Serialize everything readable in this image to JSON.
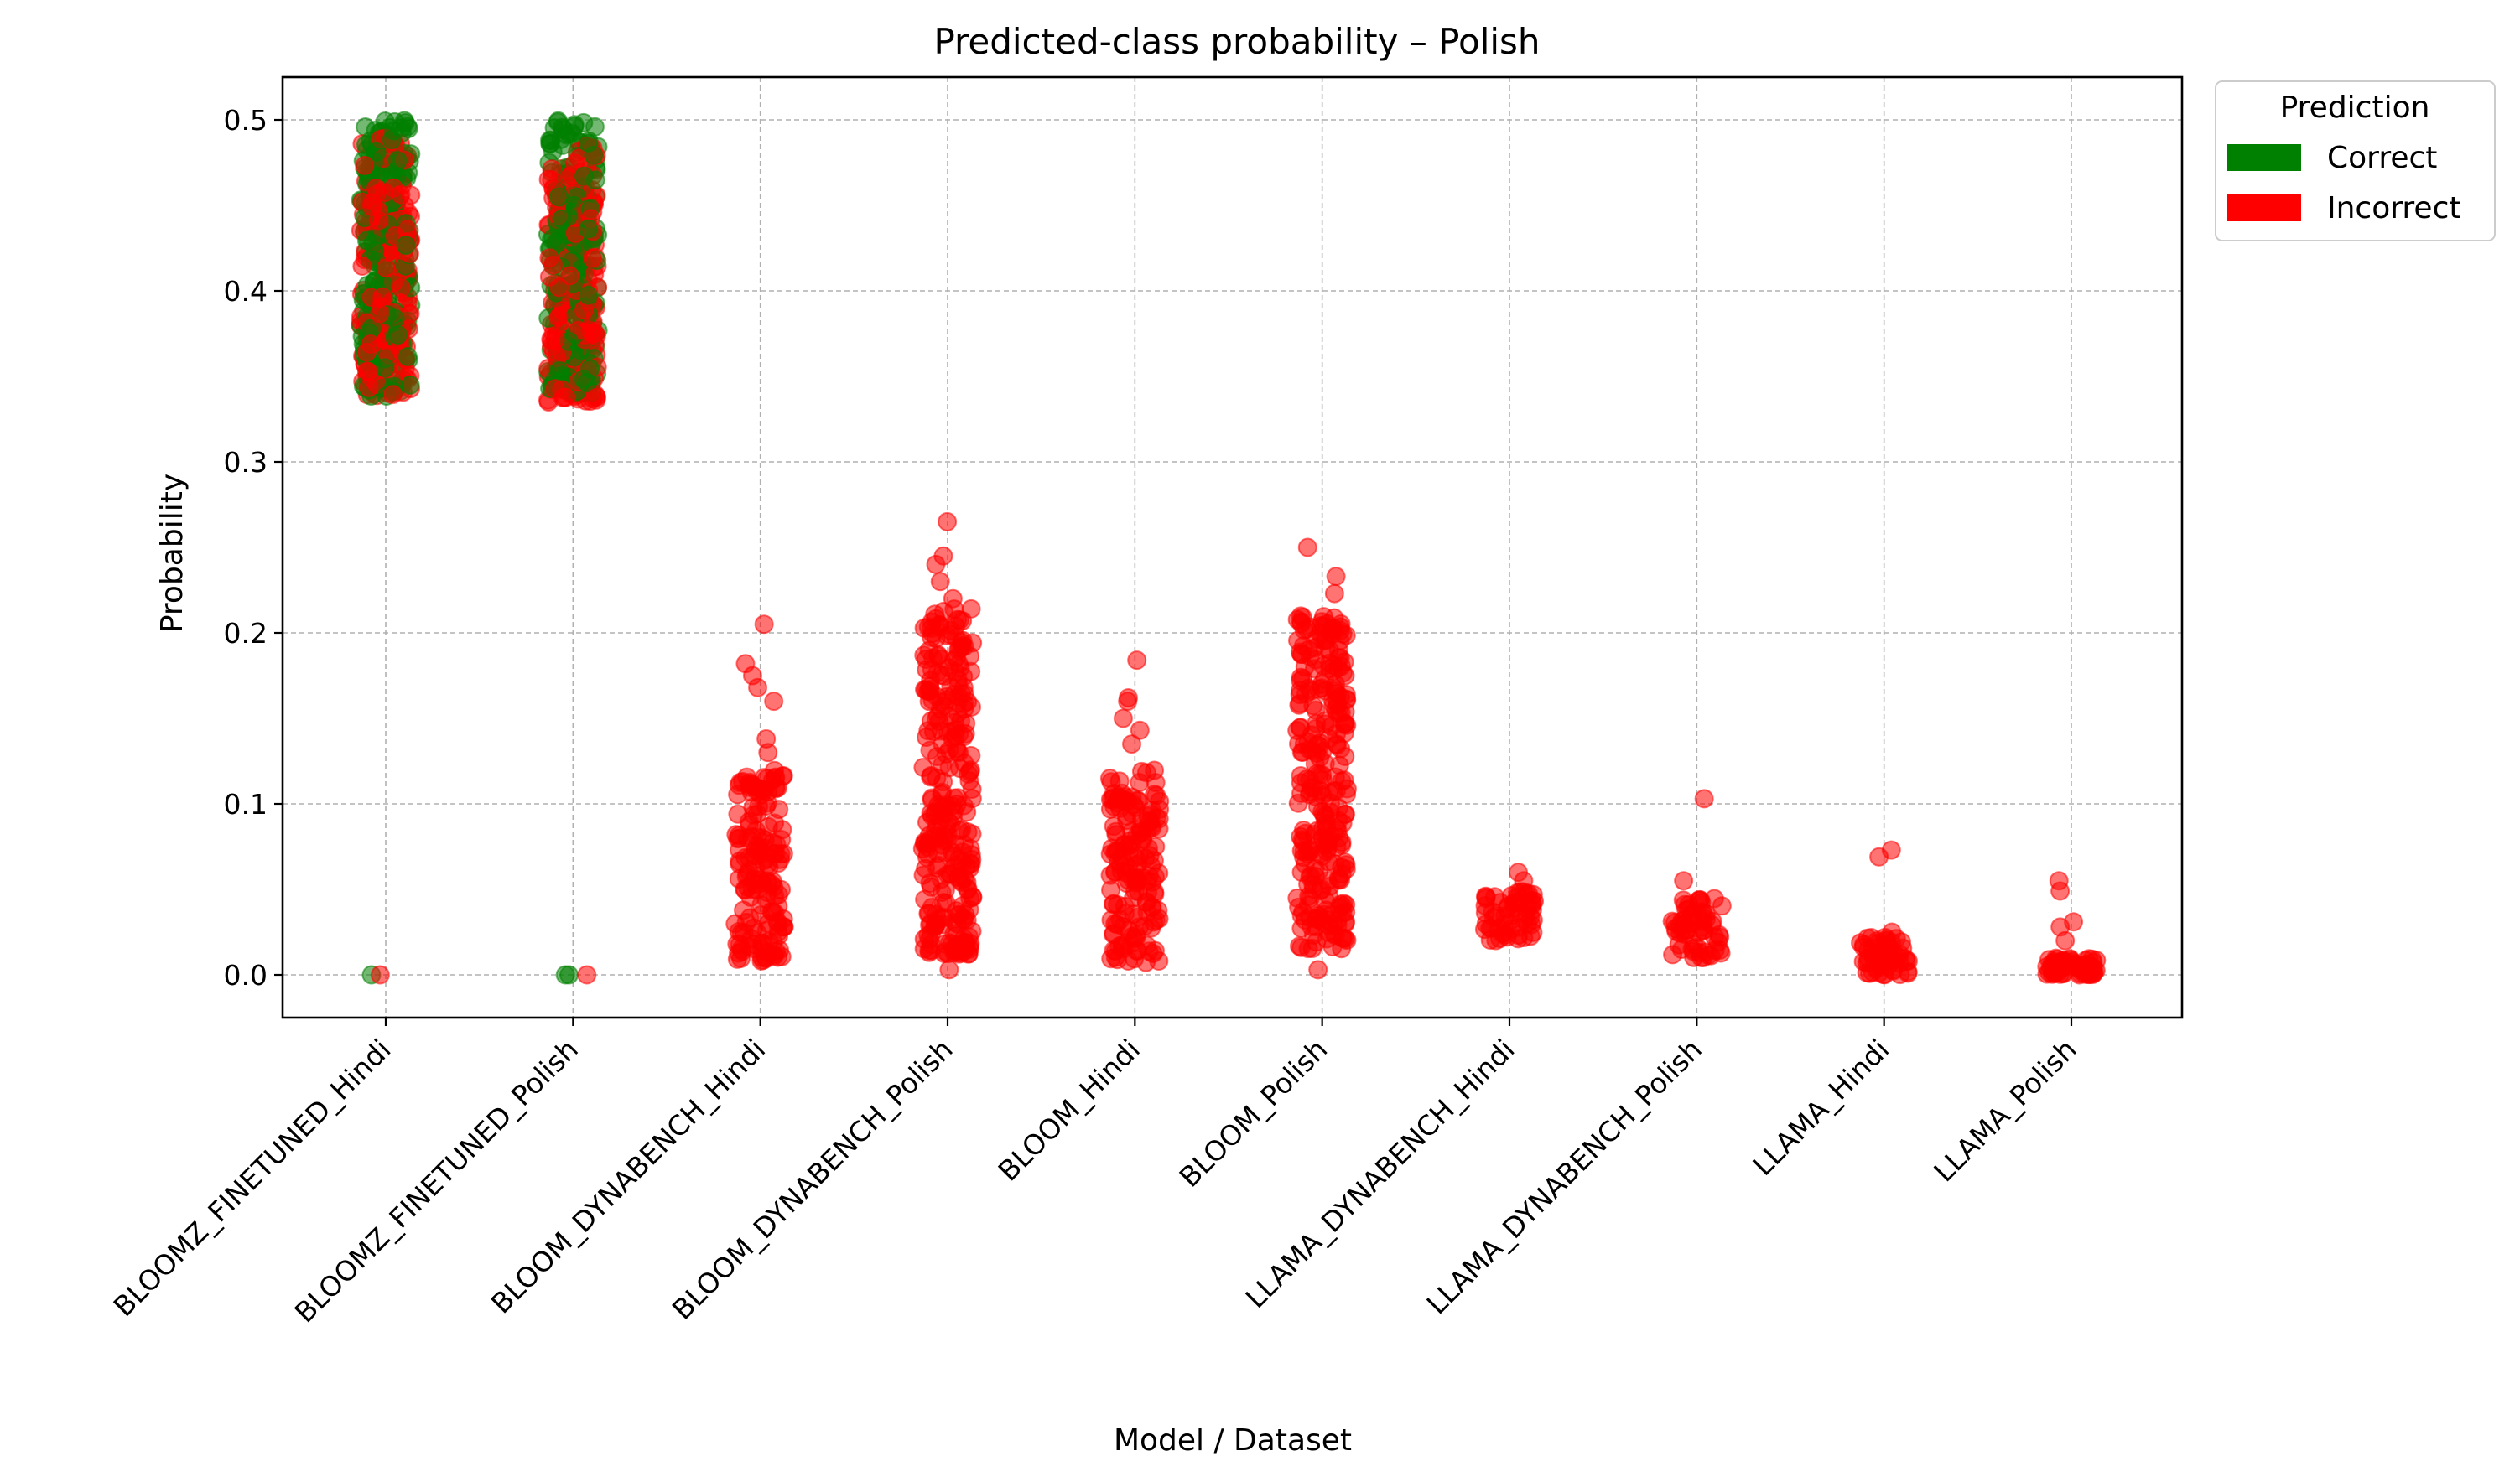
{
  "chart_data": {
    "type": "scatter",
    "title": "Predicted-class probability – Polish",
    "xlabel": "Model / Dataset",
    "ylabel": "Probability",
    "ylim": [
      -0.025,
      0.525
    ],
    "yticks": [
      "0.0",
      "0.1",
      "0.2",
      "0.3",
      "0.4",
      "0.5"
    ],
    "ytick_values": [
      0.0,
      0.1,
      0.2,
      0.3,
      0.4,
      0.5
    ],
    "grid": true,
    "categories": [
      "BLOOMZ_FINETUNED_Hindi",
      "BLOOMZ_FINETUNED_Polish",
      "BLOOM_DYNABENCH_Hindi",
      "BLOOM_DYNABENCH_Polish",
      "BLOOM_Hindi",
      "BLOOM_Polish",
      "LLAMA_DYNABENCH_Hindi",
      "LLAMA_DYNABENCH_Polish",
      "LLAMA_Hindi",
      "LLAMA_Polish"
    ],
    "legend": {
      "title": "Prediction",
      "position": "outside-top-right",
      "entries": [
        {
          "label": "Correct",
          "color": "#008000"
        },
        {
          "label": "Incorrect",
          "color": "#ff0000"
        }
      ]
    },
    "series": [
      {
        "name": "Correct",
        "color": "#008000",
        "groups": [
          {
            "category": "BLOOMZ_FINETUNED_Hindi",
            "range": [
              0.338,
              0.5
            ],
            "extra": [
              0.0
            ]
          },
          {
            "category": "BLOOMZ_FINETUNED_Polish",
            "range": [
              0.34,
              0.5
            ],
            "extra": [
              0.0,
              0.0
            ]
          }
        ]
      },
      {
        "name": "Incorrect",
        "color": "#ff0000",
        "groups": [
          {
            "category": "BLOOMZ_FINETUNED_Hindi",
            "range": [
              0.338,
              0.49
            ],
            "extra": [
              0.0
            ]
          },
          {
            "category": "BLOOMZ_FINETUNED_Polish",
            "range": [
              0.335,
              0.485
            ],
            "extra": [
              0.0
            ]
          },
          {
            "category": "BLOOM_DYNABENCH_Hindi",
            "range": [
              0.008,
              0.12
            ],
            "extra": [
              0.205,
              0.182,
              0.175,
              0.168,
              0.16,
              0.138,
              0.13
            ]
          },
          {
            "category": "BLOOM_DYNABENCH_Polish",
            "range": [
              0.012,
              0.215
            ],
            "extra": [
              0.265,
              0.245,
              0.24,
              0.23,
              0.22,
              0.003
            ]
          },
          {
            "category": "BLOOM_Hindi",
            "range": [
              0.006,
              0.12
            ],
            "extra": [
              0.184,
              0.162,
              0.16,
              0.15,
              0.143,
              0.135
            ]
          },
          {
            "category": "BLOOM_Polish",
            "range": [
              0.015,
              0.21
            ],
            "extra": [
              0.25,
              0.233,
              0.223,
              0.003
            ]
          },
          {
            "category": "LLAMA_DYNABENCH_Hindi",
            "range": [
              0.02,
              0.05
            ],
            "extra": [
              0.06,
              0.055
            ]
          },
          {
            "category": "LLAMA_DYNABENCH_Polish",
            "range": [
              0.01,
              0.045
            ],
            "extra": [
              0.103,
              0.055
            ]
          },
          {
            "category": "LLAMA_Hindi",
            "range": [
              0.0,
              0.022
            ],
            "extra": [
              0.073,
              0.069,
              0.025
            ]
          },
          {
            "category": "LLAMA_Polish",
            "range": [
              0.0,
              0.01
            ],
            "extra": [
              0.055,
              0.049,
              0.031,
              0.028,
              0.02
            ]
          }
        ]
      }
    ]
  }
}
